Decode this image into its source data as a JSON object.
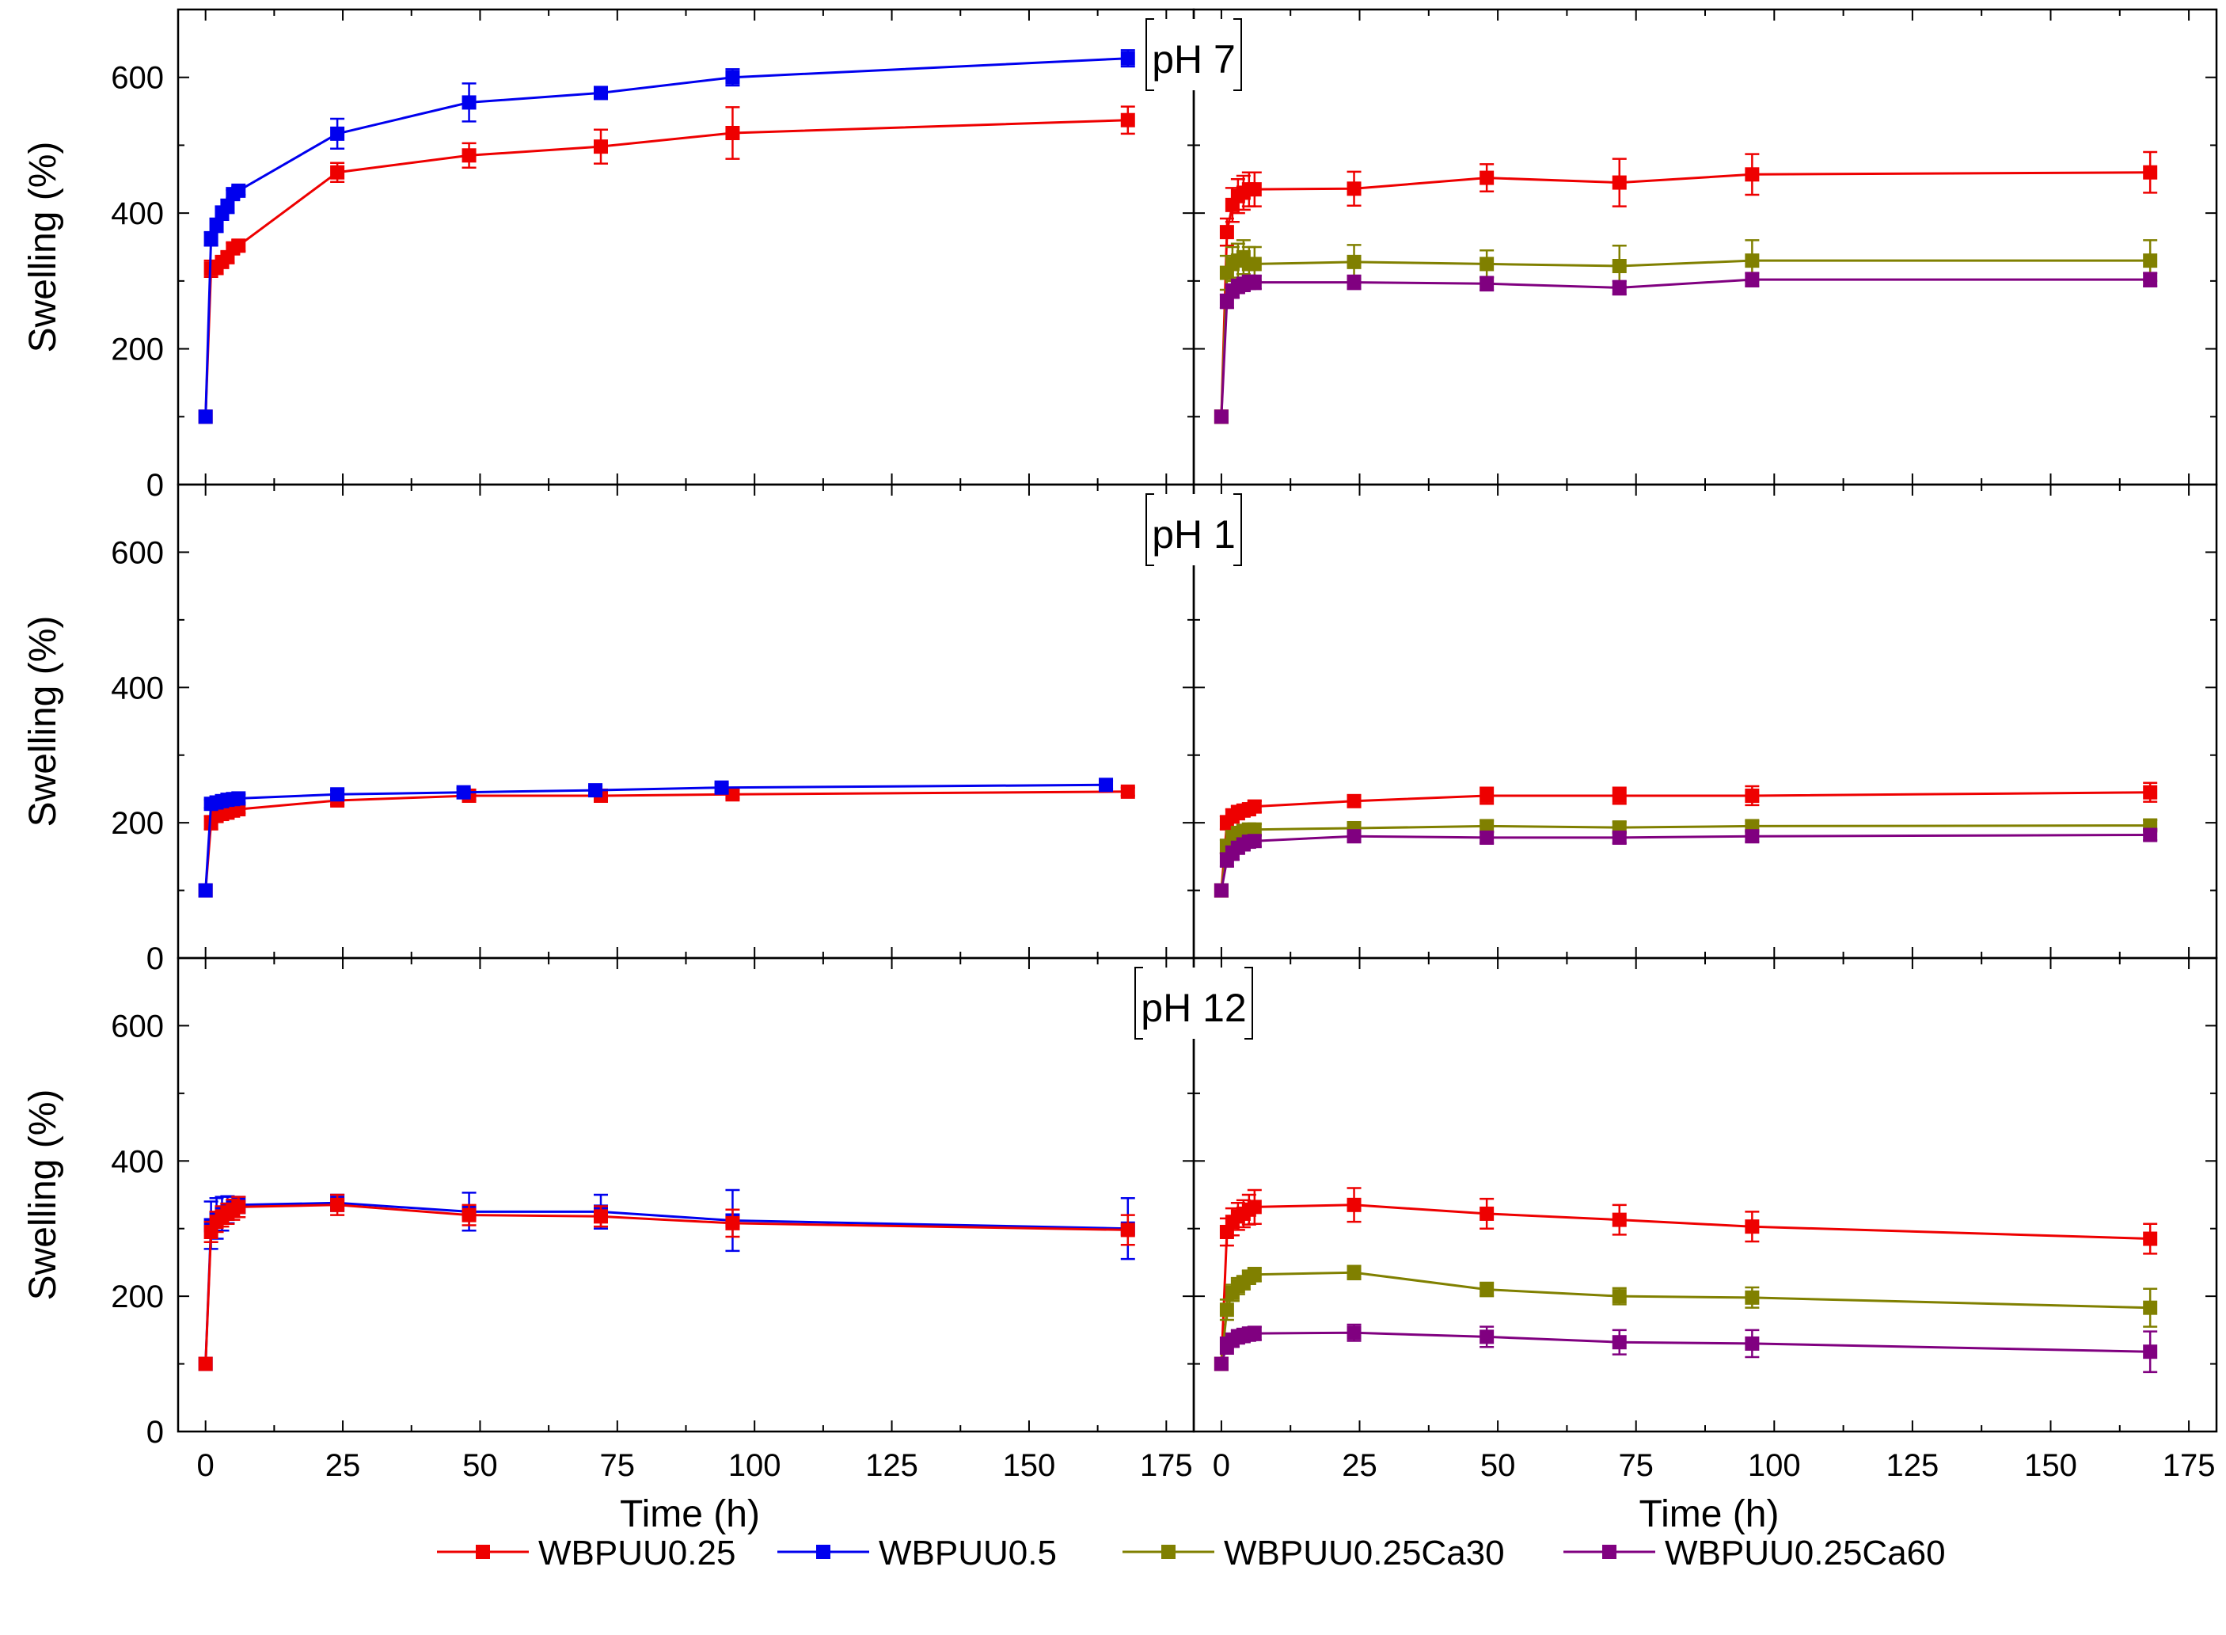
{
  "colors": {
    "WBPUU0.25": "#ee0000",
    "WBPUU0.5": "#0000ee",
    "WBPUU0.25Ca30": "#808000",
    "WBPUU0.25Ca60": "#800080"
  },
  "legend": [
    "WBPUU0.25",
    "WBPUU0.5",
    "WBPUU0.25Ca30",
    "WBPUU0.25Ca60"
  ],
  "chart_data": [
    {
      "type": "line",
      "row": 0,
      "col": 0,
      "panel_label": "pH 7",
      "xlabel": "",
      "ylabel": "Swelling (%)",
      "xlim": [
        -5,
        180
      ],
      "ylim": [
        0,
        700
      ],
      "yticks": [
        "0",
        "200",
        "400",
        "600"
      ],
      "xticks": [],
      "series": [
        {
          "name": "WBPUU0.25",
          "x": [
            0,
            1,
            2,
            3,
            4,
            5,
            6,
            24,
            48,
            72,
            96,
            168
          ],
          "y": [
            100,
            318,
            320,
            328,
            335,
            348,
            352,
            460,
            485,
            498,
            518,
            537
          ],
          "err": [
            0,
            12,
            10,
            8,
            8,
            8,
            8,
            14,
            18,
            25,
            38,
            20
          ]
        },
        {
          "name": "WBPUU0.5",
          "x": [
            0,
            1,
            2,
            3,
            4,
            5,
            6,
            24,
            48,
            72,
            96,
            168
          ],
          "y": [
            100,
            362,
            382,
            400,
            410,
            428,
            433,
            517,
            563,
            577,
            600,
            628
          ],
          "err": [
            0,
            10,
            10,
            10,
            10,
            6,
            6,
            22,
            28,
            8,
            12,
            12
          ]
        }
      ]
    },
    {
      "type": "line",
      "row": 0,
      "col": 1,
      "panel_label": "",
      "xlabel": "",
      "ylabel": "",
      "xlim": [
        -5,
        180
      ],
      "ylim": [
        0,
        700
      ],
      "yticks": [],
      "xticks": [],
      "series": [
        {
          "name": "WBPUU0.25",
          "x": [
            0,
            1,
            2,
            3,
            4,
            5,
            6,
            24,
            48,
            72,
            96,
            168
          ],
          "y": [
            100,
            372,
            412,
            425,
            430,
            435,
            435,
            436,
            452,
            445,
            457,
            460
          ],
          "err": [
            0,
            20,
            25,
            25,
            25,
            25,
            25,
            25,
            20,
            35,
            30,
            30
          ]
        },
        {
          "name": "WBPUU0.25Ca30",
          "x": [
            0,
            1,
            2,
            3,
            4,
            5,
            6,
            24,
            48,
            72,
            96,
            168
          ],
          "y": [
            100,
            312,
            325,
            330,
            335,
            325,
            325,
            328,
            325,
            322,
            330,
            330
          ],
          "err": [
            0,
            25,
            25,
            25,
            25,
            25,
            25,
            25,
            20,
            30,
            30,
            30
          ]
        },
        {
          "name": "WBPUU0.25Ca60",
          "x": [
            0,
            1,
            2,
            3,
            4,
            5,
            6,
            24,
            48,
            72,
            96,
            168
          ],
          "y": [
            100,
            270,
            285,
            292,
            295,
            298,
            298,
            298,
            296,
            290,
            302,
            302
          ],
          "err": [
            0,
            10,
            10,
            10,
            10,
            10,
            10,
            10,
            10,
            10,
            10,
            10
          ]
        }
      ]
    },
    {
      "type": "line",
      "row": 1,
      "col": 0,
      "panel_label": "pH 1",
      "xlabel": "",
      "ylabel": "Swelling (%)",
      "xlim": [
        -5,
        180
      ],
      "ylim": [
        0,
        700
      ],
      "yticks": [
        "0",
        "200",
        "400",
        "600"
      ],
      "xticks": [],
      "series": [
        {
          "name": "WBPUU0.25",
          "x": [
            0,
            1,
            2,
            3,
            4,
            5,
            6,
            24,
            48,
            72,
            96,
            168
          ],
          "y": [
            100,
            200,
            210,
            213,
            215,
            218,
            220,
            233,
            240,
            240,
            242,
            246
          ],
          "err": [
            0,
            10,
            8,
            8,
            6,
            6,
            6,
            6,
            6,
            6,
            6,
            6
          ]
        },
        {
          "name": "WBPUU0.5",
          "x": [
            0,
            1,
            2,
            3,
            4,
            5,
            6,
            24,
            47,
            71,
            94,
            164
          ],
          "y": [
            100,
            228,
            230,
            232,
            234,
            235,
            236,
            242,
            245,
            248,
            252,
            256
          ],
          "err": [
            0,
            6,
            6,
            6,
            6,
            6,
            6,
            6,
            6,
            6,
            6,
            6
          ]
        }
      ]
    },
    {
      "type": "line",
      "row": 1,
      "col": 1,
      "panel_label": "",
      "xlabel": "",
      "ylabel": "",
      "xlim": [
        -5,
        180
      ],
      "ylim": [
        0,
        700
      ],
      "yticks": [],
      "xticks": [],
      "series": [
        {
          "name": "WBPUU0.25",
          "x": [
            0,
            1,
            2,
            3,
            4,
            5,
            6,
            24,
            48,
            72,
            96,
            168
          ],
          "y": [
            100,
            200,
            210,
            215,
            218,
            220,
            224,
            232,
            240,
            240,
            240,
            245
          ],
          "err": [
            0,
            10,
            10,
            10,
            8,
            8,
            8,
            8,
            12,
            12,
            14,
            14
          ]
        },
        {
          "name": "WBPUU0.25Ca30",
          "x": [
            0,
            1,
            2,
            3,
            4,
            5,
            6,
            24,
            48,
            72,
            96,
            168
          ],
          "y": [
            100,
            165,
            178,
            185,
            188,
            190,
            190,
            192,
            195,
            193,
            195,
            196
          ],
          "err": [
            0,
            10,
            10,
            8,
            8,
            8,
            8,
            8,
            8,
            8,
            8,
            8
          ]
        },
        {
          "name": "WBPUU0.25Ca60",
          "x": [
            0,
            1,
            2,
            3,
            4,
            5,
            6,
            24,
            48,
            72,
            96,
            168
          ],
          "y": [
            100,
            145,
            155,
            163,
            168,
            172,
            173,
            180,
            178,
            178,
            180,
            182
          ],
          "err": [
            0,
            10,
            10,
            8,
            8,
            8,
            8,
            8,
            8,
            8,
            8,
            8
          ]
        }
      ]
    },
    {
      "type": "line",
      "row": 2,
      "col": 0,
      "panel_label": "pH 12",
      "xlabel": "Time (h)",
      "ylabel": "Swelling (%)",
      "xlim": [
        -5,
        180
      ],
      "ylim": [
        0,
        700
      ],
      "yticks": [
        "0",
        "200",
        "400",
        "600"
      ],
      "xticks": [
        "0",
        "25",
        "50",
        "75",
        "100",
        "125",
        "150",
        "175"
      ],
      "series": [
        {
          "name": "WBPUU0.5",
          "x": [
            0,
            1,
            2,
            3,
            4,
            5,
            6,
            24,
            48,
            72,
            96,
            168
          ],
          "y": [
            100,
            305,
            315,
            322,
            328,
            332,
            335,
            338,
            325,
            325,
            312,
            300
          ],
          "err": [
            0,
            35,
            30,
            25,
            20,
            15,
            12,
            12,
            28,
            25,
            45,
            45
          ]
        },
        {
          "name": "WBPUU0.25",
          "x": [
            0,
            1,
            2,
            3,
            4,
            5,
            6,
            24,
            48,
            72,
            96,
            168
          ],
          "y": [
            100,
            295,
            310,
            318,
            322,
            328,
            332,
            335,
            320,
            318,
            308,
            298
          ],
          "err": [
            0,
            15,
            15,
            15,
            15,
            15,
            15,
            15,
            15,
            15,
            20,
            22
          ]
        }
      ]
    },
    {
      "type": "line",
      "row": 2,
      "col": 1,
      "panel_label": "",
      "xlabel": "Time (h)",
      "ylabel": "",
      "xlim": [
        -5,
        180
      ],
      "ylim": [
        0,
        700
      ],
      "yticks": [],
      "xticks": [
        "0",
        "25",
        "50",
        "75",
        "100",
        "125",
        "150",
        "175"
      ],
      "series": [
        {
          "name": "WBPUU0.25",
          "x": [
            0,
            1,
            2,
            3,
            4,
            5,
            6,
            24,
            48,
            72,
            96,
            168
          ],
          "y": [
            100,
            295,
            310,
            318,
            322,
            328,
            332,
            335,
            322,
            313,
            303,
            285
          ],
          "err": [
            0,
            20,
            20,
            20,
            20,
            22,
            25,
            25,
            22,
            22,
            22,
            22
          ]
        },
        {
          "name": "WBPUU0.25Ca30",
          "x": [
            0,
            1,
            2,
            3,
            4,
            5,
            6,
            24,
            48,
            72,
            96,
            168
          ],
          "y": [
            100,
            180,
            205,
            215,
            220,
            228,
            232,
            235,
            210,
            200,
            198,
            183
          ],
          "err": [
            0,
            15,
            12,
            12,
            10,
            10,
            10,
            10,
            10,
            12,
            15,
            28
          ]
        },
        {
          "name": "WBPUU0.25Ca60",
          "x": [
            0,
            1,
            2,
            3,
            4,
            5,
            6,
            24,
            48,
            72,
            96,
            168
          ],
          "y": [
            100,
            127,
            135,
            140,
            142,
            144,
            145,
            146,
            140,
            132,
            130,
            118
          ],
          "err": [
            0,
            12,
            10,
            10,
            10,
            10,
            10,
            12,
            15,
            18,
            20,
            30
          ]
        }
      ]
    }
  ]
}
